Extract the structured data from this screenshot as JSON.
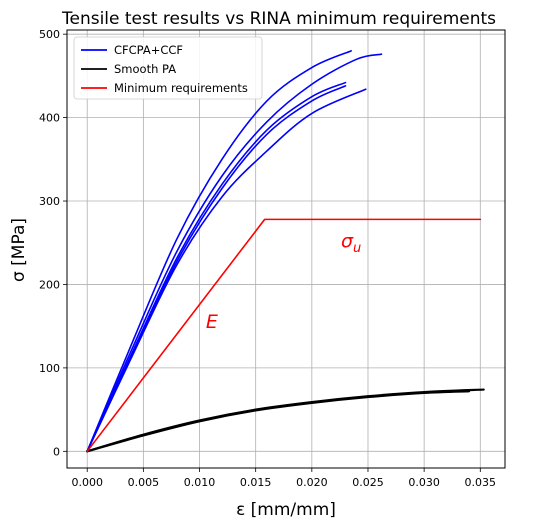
{
  "chart_data": {
    "type": "line",
    "title": "Tensile test results vs RINA minimum requirements",
    "xlabel": "ε [mm/mm]",
    "ylabel": "σ [MPa]",
    "xlim": [
      -0.0018,
      0.0372
    ],
    "ylim": [
      -20,
      505
    ],
    "xticks": [
      "0.000",
      "0.005",
      "0.010",
      "0.015",
      "0.020",
      "0.025",
      "0.030",
      "0.035"
    ],
    "xtick_values": [
      0,
      0.005,
      0.01,
      0.015,
      0.02,
      0.025,
      0.03,
      0.035
    ],
    "yticks": [
      "0",
      "100",
      "200",
      "300",
      "400",
      "500"
    ],
    "ytick_values": [
      0,
      100,
      200,
      300,
      400,
      500
    ],
    "grid": true,
    "legend_position": "top-left",
    "legend": [
      {
        "label": "CFCPA+CCF",
        "color": "#0000ff"
      },
      {
        "label": "Smooth PA",
        "color": "#000000"
      },
      {
        "label": "Minimum requirements",
        "color": "#ff0000"
      }
    ],
    "series": [
      {
        "group": "CFCPA+CCF",
        "color": "#0000ff",
        "x": [
          0,
          0.004,
          0.008,
          0.012,
          0.016,
          0.02,
          0.0235
        ],
        "y": [
          0,
          130,
          255,
          350,
          420,
          460,
          480
        ]
      },
      {
        "group": "CFCPA+CCF",
        "color": "#0000ff",
        "x": [
          0,
          0.004,
          0.008,
          0.012,
          0.016,
          0.02,
          0.024,
          0.0262
        ],
        "y": [
          0,
          123,
          240,
          330,
          395,
          440,
          470,
          476
        ]
      },
      {
        "group": "CFCPA+CCF",
        "color": "#0000ff",
        "x": [
          0,
          0.004,
          0.008,
          0.012,
          0.016,
          0.02,
          0.023
        ],
        "y": [
          0,
          118,
          232,
          320,
          385,
          425,
          442
        ]
      },
      {
        "group": "CFCPA+CCF",
        "color": "#0000ff",
        "x": [
          0,
          0.004,
          0.008,
          0.012,
          0.016,
          0.02,
          0.023
        ],
        "y": [
          0,
          116,
          228,
          315,
          380,
          420,
          438
        ]
      },
      {
        "group": "CFCPA+CCF",
        "color": "#0000ff",
        "x": [
          0,
          0.004,
          0.008,
          0.012,
          0.016,
          0.02,
          0.0248
        ],
        "y": [
          0,
          114,
          224,
          305,
          360,
          405,
          434
        ]
      },
      {
        "group": "Smooth PA",
        "color": "#000000",
        "x": [
          0,
          0.005,
          0.01,
          0.015,
          0.02,
          0.025,
          0.03,
          0.0353
        ],
        "y": [
          0,
          20,
          37,
          50,
          59,
          66,
          71,
          74
        ]
      },
      {
        "group": "Smooth PA",
        "color": "#000000",
        "x": [
          0,
          0.005,
          0.01,
          0.015,
          0.02,
          0.025,
          0.03,
          0.034
        ],
        "y": [
          0,
          19,
          36,
          49,
          58,
          65,
          70,
          72
        ]
      },
      {
        "group": "Minimum requirements",
        "color": "#ff0000",
        "x": [
          0,
          0.0158,
          0.035
        ],
        "y": [
          0,
          278,
          278
        ]
      }
    ],
    "annotations": [
      {
        "text": "E",
        "x": 0.0111,
        "y": 148,
        "color": "#ff0000"
      },
      {
        "text": "σ",
        "sub": "u",
        "x": 0.0235,
        "y": 245,
        "color": "#ff0000"
      }
    ]
  }
}
